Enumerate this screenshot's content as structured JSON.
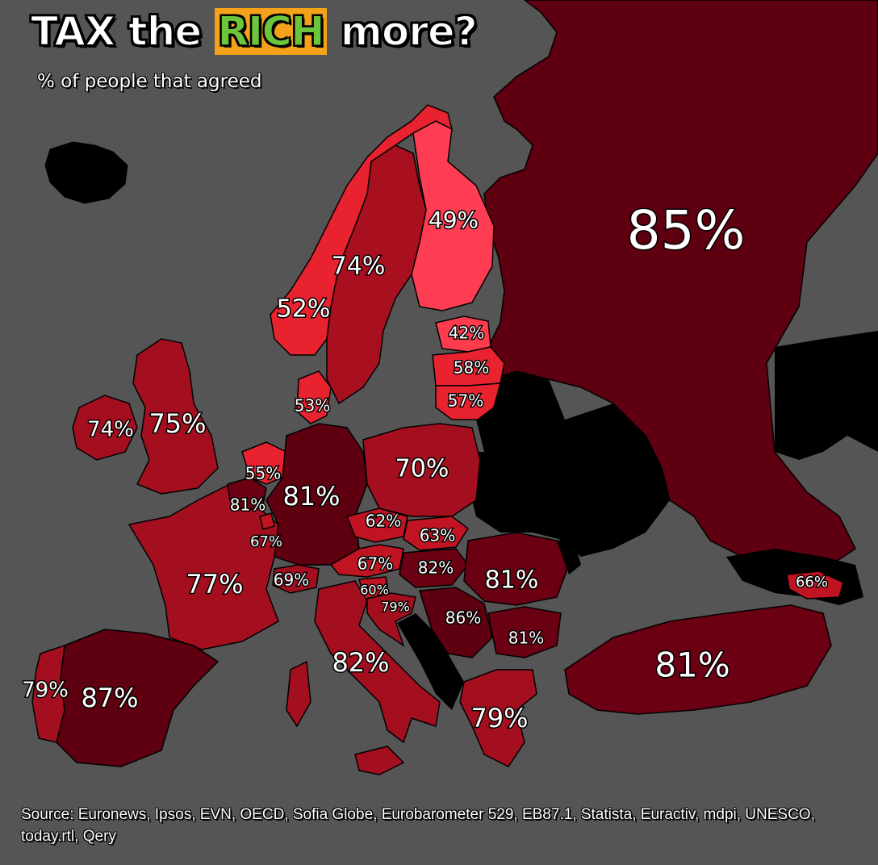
{
  "title": {
    "part1": "TAX the ",
    "highlight": "RICH",
    "part2": " more?"
  },
  "subtitle": "% of people that agreed",
  "source": "Source: Euronews, Ipsos, EVN, OECD, Sofia Globe, Eurobarometer 529, EB87.1, Statista, Euractiv, mdpi, UNESCO, today.rtl, Qery",
  "colors": {
    "background": "#555555",
    "sea": "#555555",
    "no_data": "#000000",
    "highlight_text": "#6cc63c",
    "highlight_bg": "#f3a21a",
    "shade_40s": "#ff3b4e",
    "shade_50s": "#e8232f",
    "shade_60s": "#c01422",
    "shade_70s": "#a30f1e",
    "shade_80s": "#6a0011"
  },
  "regions": [
    {
      "id": "russia",
      "value": "85%"
    },
    {
      "id": "finland",
      "value": "49%"
    },
    {
      "id": "sweden",
      "value": "74%"
    },
    {
      "id": "norway",
      "value": "52%"
    },
    {
      "id": "estonia",
      "value": "42%"
    },
    {
      "id": "latvia",
      "value": "58%"
    },
    {
      "id": "lithuania",
      "value": "57%"
    },
    {
      "id": "denmark",
      "value": "53%"
    },
    {
      "id": "ireland",
      "value": "74%"
    },
    {
      "id": "uk",
      "value": "75%"
    },
    {
      "id": "netherlands",
      "value": "55%"
    },
    {
      "id": "germany",
      "value": "81%"
    },
    {
      "id": "belgium",
      "value": "81%"
    },
    {
      "id": "poland",
      "value": "70%"
    },
    {
      "id": "czechia",
      "value": "62%"
    },
    {
      "id": "slovakia",
      "value": "63%"
    },
    {
      "id": "luxembourg",
      "value": "67%"
    },
    {
      "id": "austria",
      "value": "67%"
    },
    {
      "id": "hungary",
      "value": "82%"
    },
    {
      "id": "romania",
      "value": "81%"
    },
    {
      "id": "france",
      "value": "77%"
    },
    {
      "id": "switzerland",
      "value": "69%"
    },
    {
      "id": "slovenia",
      "value": "60%"
    },
    {
      "id": "croatia",
      "value": "79%"
    },
    {
      "id": "serbia",
      "value": "86%"
    },
    {
      "id": "georgia",
      "value": "66%"
    },
    {
      "id": "bulgaria",
      "value": "81%"
    },
    {
      "id": "italy",
      "value": "82%"
    },
    {
      "id": "turkey",
      "value": "81%"
    },
    {
      "id": "portugal",
      "value": "79%"
    },
    {
      "id": "spain",
      "value": "87%"
    },
    {
      "id": "greece",
      "value": "79%"
    }
  ]
}
